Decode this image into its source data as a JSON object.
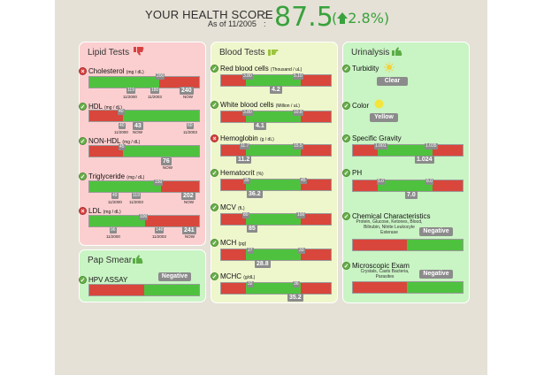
{
  "header": {
    "title": "YOUR HEALTH SCORE",
    "as_of": "As of 11/2005",
    "score": "87.5",
    "change": "2.8%"
  },
  "colors": {
    "good": "#4ec23f",
    "bad": "#d9463b",
    "accent": "#39a23d"
  },
  "lipid": {
    "title": "Lipid Tests",
    "rows": [
      {
        "label": "Cholesterol",
        "unit": "(mg / dL)",
        "limit": "200",
        "hist": [
          "119",
          "180"
        ],
        "hist_dates": [
          "11/2000",
          "11/2003"
        ],
        "now": "240",
        "now_label": "NOW"
      },
      {
        "label": "HDL",
        "unit": "(mg / dL)",
        "limit": "40",
        "hist": [
          "40",
          "43"
        ],
        "hist_dates": [
          "11/2000",
          "NOW"
        ],
        "prev": "60",
        "prev_date": "11/2003",
        "now": "43"
      },
      {
        "label": "NON-HDL",
        "unit": "(mg / dL)",
        "limit": "45",
        "now": "76",
        "now_label": "NOW"
      },
      {
        "label": "Triglyceride",
        "unit": "(mg / dL)",
        "limit": "150",
        "hist": [
          "49",
          "119"
        ],
        "hist_dates": [
          "11/2000",
          "11/2003"
        ],
        "now": "202",
        "now_label": "NOW"
      },
      {
        "label": "LDL",
        "unit": "(mg / dL)",
        "limit": "100",
        "hist": [
          "96",
          "146"
        ],
        "hist_dates": [
          "11/2000",
          "11/2003"
        ],
        "now": "241",
        "now_label": "NOW"
      }
    ]
  },
  "pap": {
    "title": "Pap Smear",
    "row": "HPV ASSAY",
    "result": "Negative"
  },
  "blood": {
    "title": "Blood Tests",
    "rows": [
      {
        "label": "Red blood cells",
        "unit": "(Thousand / uL)",
        "lo": "3.80",
        "hi": "5.10",
        "now": "4.2"
      },
      {
        "label": "White blood cells",
        "unit": "(Million / uL)",
        "lo": "3.80",
        "hi": "10.8",
        "now": "4.1"
      },
      {
        "label": "Hemoglobin",
        "unit": "(g / dL)",
        "lo": "11.7",
        "hi": "15.5",
        "now": "11.2"
      },
      {
        "label": "Hematocrit",
        "unit": "(%)",
        "lo": "35",
        "hi": "45",
        "now": "36.2"
      },
      {
        "label": "MCV",
        "unit": "(fL)",
        "lo": "80",
        "hi": "100",
        "now": "85"
      },
      {
        "label": "MCH",
        "unit": "(pg)",
        "lo": "27",
        "hi": "33",
        "now": "28.8"
      },
      {
        "label": "MCHC",
        "unit": "(g/dL)",
        "lo": "32",
        "hi": "36",
        "now": "35.2"
      }
    ]
  },
  "urine": {
    "title": "Urinalysis",
    "turbidity": {
      "label": "Turbidity",
      "value": "Clear"
    },
    "color": {
      "label": "Color",
      "value": "Yellow"
    },
    "sg": {
      "label": "Specific Gravity",
      "lo": "1.001",
      "hi": "1.035",
      "now": "1.024"
    },
    "ph": {
      "label": "PH",
      "lo": "5.0",
      "hi": "8.0",
      "now": "7.0"
    },
    "chem": {
      "label": "Chemical Characteristics",
      "sub": "Protein, Glucose, Ketones, Blood, Bilirubin, Nitrite Leukocyte Esterase",
      "value": "Negative"
    },
    "micro": {
      "label": "Microscopic Exam",
      "sub": "Crystals, Casts Bacteria, Parasites",
      "value": "Negative"
    }
  }
}
